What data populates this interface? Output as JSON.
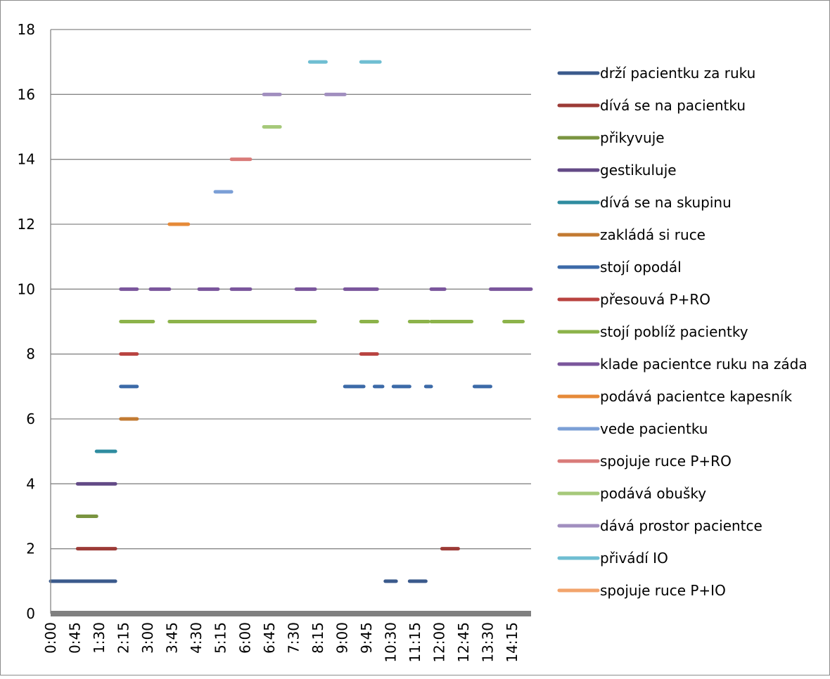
{
  "chart_data": {
    "type": "line",
    "title": "",
    "xlabel": "",
    "ylabel": "",
    "ylim": [
      0,
      18
    ],
    "y_ticks": [
      "0",
      "2",
      "4",
      "6",
      "8",
      "10",
      "12",
      "14",
      "16",
      "18"
    ],
    "x_min": "0:00",
    "x_max": "14:50",
    "x_ticks": [
      "0:00",
      "0:45",
      "1:30",
      "2:15",
      "3:00",
      "3:45",
      "4:30",
      "5:15",
      "6:00",
      "6:45",
      "7:30",
      "8:15",
      "9:00",
      "9:45",
      "10:30",
      "11:15",
      "12:00",
      "12:45",
      "13:30",
      "14:15"
    ],
    "grid": "horizontal",
    "legend_position": "right",
    "series": [
      {
        "name": "drží pacientku za ruku",
        "color": "#3b5a8c",
        "y": 1,
        "segments": [
          [
            "0:00",
            "2:00"
          ],
          [
            "10:20",
            "10:40"
          ],
          [
            "11:05",
            "11:35"
          ]
        ]
      },
      {
        "name": "dívá se na pacientku",
        "color": "#9c3a36",
        "y": 2,
        "segments": [
          [
            "0:50",
            "2:00"
          ],
          [
            "12:05",
            "12:35"
          ]
        ]
      },
      {
        "name": "přikyvuje",
        "color": "#7a9440",
        "y": 3,
        "segments": [
          [
            "0:50",
            "1:25"
          ]
        ]
      },
      {
        "name": "gestikuluje",
        "color": "#634a86",
        "y": 4,
        "segments": [
          [
            "0:50",
            "2:00"
          ]
        ]
      },
      {
        "name": "dívá se na skupinu",
        "color": "#2f8ca0",
        "y": 5,
        "segments": [
          [
            "1:25",
            "2:00"
          ]
        ]
      },
      {
        "name": "zakládá si ruce",
        "color": "#c27a32",
        "y": 6,
        "segments": [
          [
            "2:10",
            "2:40"
          ]
        ]
      },
      {
        "name": "stojí opodál",
        "color": "#3c6aa8",
        "y": 7,
        "segments": [
          [
            "2:10",
            "2:40"
          ],
          [
            "9:05",
            "9:40"
          ],
          [
            "10:00",
            "10:15"
          ],
          [
            "10:35",
            "11:05"
          ],
          [
            "11:35",
            "11:45"
          ],
          [
            "13:05",
            "13:35"
          ]
        ]
      },
      {
        "name": "přesouvá P+RO",
        "color": "#b94340",
        "y": 8,
        "segments": [
          [
            "2:10",
            "2:40"
          ],
          [
            "9:35",
            "10:05"
          ]
        ]
      },
      {
        "name": "stojí poblíž pacientky",
        "color": "#8cb34a",
        "y": 9,
        "segments": [
          [
            "2:10",
            "3:10"
          ],
          [
            "3:40",
            "8:10"
          ],
          [
            "9:35",
            "10:05"
          ],
          [
            "11:05",
            "11:40"
          ],
          [
            "11:45",
            "13:00"
          ],
          [
            "14:00",
            "14:35"
          ]
        ]
      },
      {
        "name": "klade pacientce ruku na záda",
        "color": "#7a569c",
        "y": 10,
        "segments": [
          [
            "2:10",
            "2:40"
          ],
          [
            "3:05",
            "3:40"
          ],
          [
            "4:35",
            "5:10"
          ],
          [
            "5:35",
            "6:10"
          ],
          [
            "7:35",
            "8:10"
          ],
          [
            "9:05",
            "10:05"
          ],
          [
            "11:45",
            "12:10"
          ],
          [
            "13:35",
            "14:50"
          ]
        ]
      },
      {
        "name": "podává pacientce kapesník",
        "color": "#e68a38",
        "y": 12,
        "segments": [
          [
            "3:40",
            "4:15"
          ]
        ]
      },
      {
        "name": "vede pacientku",
        "color": "#7b9fd6",
        "y": 13,
        "segments": [
          [
            "5:05",
            "5:35"
          ]
        ]
      },
      {
        "name": "spojuje ruce P+RO",
        "color": "#d97b79",
        "y": 14,
        "segments": [
          [
            "5:35",
            "6:10"
          ]
        ]
      },
      {
        "name": "podává obušky",
        "color": "#a6c97a",
        "y": 15,
        "segments": [
          [
            "6:35",
            "7:05"
          ]
        ]
      },
      {
        "name": "dává prostor pacientce",
        "color": "#a18fbf",
        "y": 16,
        "segments": [
          [
            "6:35",
            "7:05"
          ],
          [
            "8:30",
            "9:05"
          ]
        ]
      },
      {
        "name": "přivádí IO",
        "color": "#6fbed2",
        "y": 17,
        "segments": [
          [
            "8:00",
            "8:30"
          ],
          [
            "9:35",
            "10:10"
          ]
        ]
      },
      {
        "name": "spojuje ruce P+IO",
        "color": "#f2a46c",
        "y": null,
        "segments": []
      }
    ]
  }
}
